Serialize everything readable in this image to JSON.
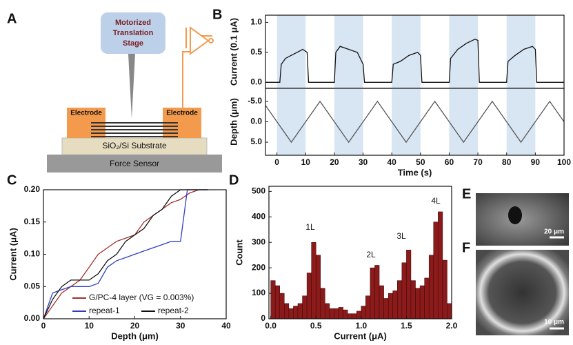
{
  "panel_labels": [
    "A",
    "B",
    "C",
    "D",
    "E",
    "F"
  ],
  "diagram": {
    "stage": [
      "Motorized",
      "Translation",
      "Stage"
    ],
    "electrode_left": "Electrode",
    "electrode_right": "Electrode",
    "substrate": "SiO₂/Si Substrate",
    "sensor": "Force Sensor"
  },
  "images": {
    "E": {
      "scale": "20 μm"
    },
    "F": {
      "scale": "10 μm"
    }
  },
  "chart_data": [
    {
      "type": "line",
      "ylabel": "Current (0.1 μA)",
      "xlim": [
        -4,
        100
      ],
      "ylim": [
        -0.1,
        1.12
      ],
      "yticks": [
        {
          "value": 0,
          "label": "0.0"
        },
        {
          "value": 0.5,
          "label": "0.5"
        },
        {
          "value": 1,
          "label": "1.0"
        }
      ],
      "spans": [
        [
          0,
          10
        ],
        [
          20,
          30
        ],
        [
          40,
          50
        ],
        [
          60,
          70
        ],
        [
          80,
          90
        ]
      ],
      "span_color": "#d8e5f3",
      "x": [
        -4,
        1,
        1.5,
        3,
        5,
        7,
        9,
        10.5,
        11,
        20,
        20.5,
        22,
        25,
        28,
        30,
        30.5,
        40,
        40.5,
        43,
        46,
        49,
        50,
        50.5,
        60,
        60.5,
        63,
        66,
        69,
        70,
        70.5,
        80,
        80.5,
        83,
        86,
        89,
        90,
        90.5,
        100
      ],
      "series": [
        {
          "name": null,
          "color": "#111111",
          "values": [
            0,
            0,
            0.3,
            0.4,
            0.45,
            0.5,
            0.55,
            0.5,
            0,
            0,
            0.5,
            0.6,
            0.55,
            0.5,
            0.3,
            0,
            0,
            0.3,
            0.35,
            0.45,
            0.5,
            0.45,
            0,
            0,
            0.4,
            0.55,
            0.65,
            0.72,
            0.7,
            0,
            0,
            0.35,
            0.45,
            0.55,
            0.6,
            0.55,
            0,
            0
          ]
        }
      ]
    },
    {
      "type": "line",
      "ylabel": "Depth (μm)",
      "xlabel": "Time (s)",
      "xlim": [
        -4,
        100
      ],
      "ylim": [
        8.2,
        -8.2
      ],
      "xticks": [
        0,
        10,
        20,
        30,
        40,
        50,
        60,
        70,
        80,
        90,
        100
      ],
      "yticks": [
        {
          "value": -5,
          "label": "-5.0"
        },
        {
          "value": 0,
          "label": "0.0"
        },
        {
          "value": 5,
          "label": "5.0"
        }
      ],
      "x": [
        -4,
        5,
        15,
        25,
        35,
        45,
        55,
        65,
        75,
        85,
        95,
        100
      ],
      "series": [
        {
          "name": null,
          "color": "#555555",
          "values": [
            -4,
            5,
            -5,
            5,
            -5,
            5,
            -5,
            5,
            -5,
            5,
            -5,
            0
          ]
        }
      ]
    },
    {
      "type": "line",
      "xlabel": "Depth (μm)",
      "ylabel": "Current (μA)",
      "xlim": [
        0,
        40
      ],
      "ylim": [
        0,
        0.2
      ],
      "xticks": [
        0,
        10,
        20,
        30,
        40
      ],
      "yticks": [
        {
          "value": 0,
          "label": "0.00"
        },
        {
          "value": 0.05,
          "label": "0.05"
        },
        {
          "value": 0.1,
          "label": "0.10"
        },
        {
          "value": 0.15,
          "label": "0.15"
        },
        {
          "value": 0.2,
          "label": "0.20"
        }
      ],
      "series": [
        {
          "name": "G/PC-4 layer (VG = 0.003%)",
          "color": "#a3302a",
          "x": [
            0,
            2,
            4,
            6,
            8,
            10,
            12,
            14,
            16,
            18,
            20,
            22,
            24,
            26,
            28,
            30,
            32,
            34,
            36
          ],
          "values": [
            0,
            0.02,
            0.04,
            0.05,
            0.06,
            0.08,
            0.1,
            0.11,
            0.12,
            0.125,
            0.13,
            0.15,
            0.16,
            0.17,
            0.18,
            0.185,
            0.195,
            0.2,
            0.2
          ]
        },
        {
          "name": "repeat-1",
          "color": "#2b3fbf",
          "x": [
            0,
            2,
            4,
            6,
            8,
            10,
            12,
            14,
            16,
            18,
            20,
            22,
            24,
            26,
            28,
            30,
            31.5,
            32,
            36
          ],
          "values": [
            0,
            0.04,
            0.045,
            0.05,
            0.05,
            0.05,
            0.055,
            0.08,
            0.09,
            0.095,
            0.1,
            0.105,
            0.11,
            0.115,
            0.12,
            0.12,
            0.2,
            0.2,
            0.2
          ]
        },
        {
          "name": "repeat-2",
          "color": "#111111",
          "x": [
            0,
            2,
            4,
            6,
            8,
            10,
            12,
            14,
            16,
            18,
            20,
            22,
            24,
            26,
            28,
            30,
            32,
            34,
            36
          ],
          "values": [
            0,
            0.03,
            0.05,
            0.06,
            0.06,
            0.06,
            0.07,
            0.09,
            0.1,
            0.12,
            0.13,
            0.14,
            0.16,
            0.17,
            0.19,
            0.2,
            0.2,
            0.2,
            0.2
          ]
        }
      ]
    },
    {
      "type": "histogram",
      "xlabel": "Current (μA)",
      "ylabel": "Count",
      "xlim": [
        -0.02,
        2.0
      ],
      "ylim": [
        0,
        520
      ],
      "color": "#8b1a1a",
      "xticks": [
        {
          "value": 0,
          "label": "0.0"
        },
        {
          "value": 0.5,
          "label": "0.5"
        },
        {
          "value": 1,
          "label": "1.0"
        },
        {
          "value": 1.5,
          "label": "1.5"
        },
        {
          "value": 2,
          "label": "2.0"
        }
      ],
      "yticks": [
        0,
        100,
        200,
        300,
        400,
        500
      ],
      "annotations": [
        "1L",
        "2L",
        "3L",
        "4L"
      ],
      "bins": [
        0,
        0.05,
        0.1,
        0.15,
        0.2,
        0.25,
        0.3,
        0.35,
        0.4,
        0.45,
        0.5,
        0.55,
        0.6,
        0.65,
        0.7,
        0.75,
        0.8,
        0.85,
        0.9,
        0.95,
        1,
        1.05,
        1.1,
        1.15,
        1.2,
        1.25,
        1.3,
        1.35,
        1.4,
        1.45,
        1.5,
        1.55,
        1.6,
        1.65,
        1.7,
        1.75,
        1.8,
        1.85,
        1.9,
        1.95,
        2
      ],
      "values": [
        150,
        130,
        100,
        60,
        40,
        50,
        60,
        90,
        180,
        300,
        250,
        120,
        60,
        40,
        40,
        45,
        35,
        20,
        20,
        30,
        50,
        90,
        200,
        210,
        130,
        80,
        100,
        110,
        150,
        220,
        270,
        150,
        120,
        130,
        160,
        250,
        380,
        420,
        230,
        60
      ]
    }
  ]
}
